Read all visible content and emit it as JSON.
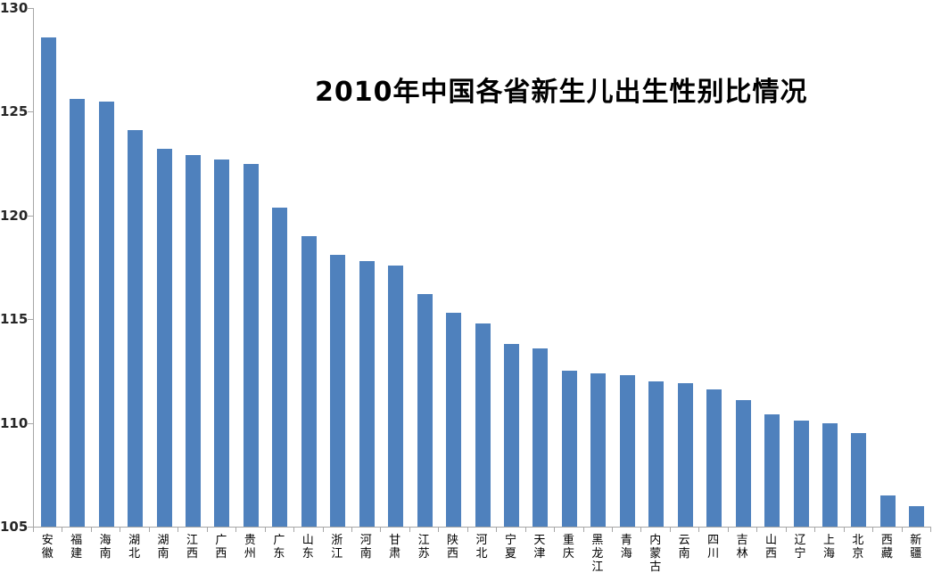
{
  "chart_data": {
    "type": "bar",
    "title": "2010年中国各省新生儿出生性别比情况",
    "categories": [
      "安徽",
      "福建",
      "海南",
      "湖北",
      "湖南",
      "江西",
      "广西",
      "贵州",
      "广东",
      "山东",
      "浙江",
      "河南",
      "甘肃",
      "江苏",
      "陕西",
      "河北",
      "宁夏",
      "天津",
      "重庆",
      "黑龙江",
      "青海",
      "内蒙古",
      "云南",
      "四川",
      "吉林",
      "山西",
      "辽宁",
      "上海",
      "北京",
      "西藏",
      "新疆"
    ],
    "values": [
      128.6,
      125.6,
      125.5,
      124.1,
      123.2,
      122.9,
      122.7,
      122.5,
      120.4,
      119.0,
      118.1,
      117.8,
      117.6,
      116.2,
      115.3,
      114.8,
      113.8,
      113.6,
      112.5,
      112.4,
      112.3,
      112.0,
      111.9,
      111.6,
      111.1,
      110.4,
      110.1,
      110.0,
      109.5,
      106.5,
      106.0
    ],
    "xlabel": "",
    "ylabel": "",
    "ylim": [
      105,
      130
    ],
    "yticks": [
      130,
      125,
      120,
      115,
      110,
      105
    ],
    "grid": false,
    "legend": false,
    "bar_color": "#4F81BD",
    "axis_color": "#A6A6A6",
    "tick_label_color": "#262626",
    "background_color": "#FFFFFF"
  }
}
